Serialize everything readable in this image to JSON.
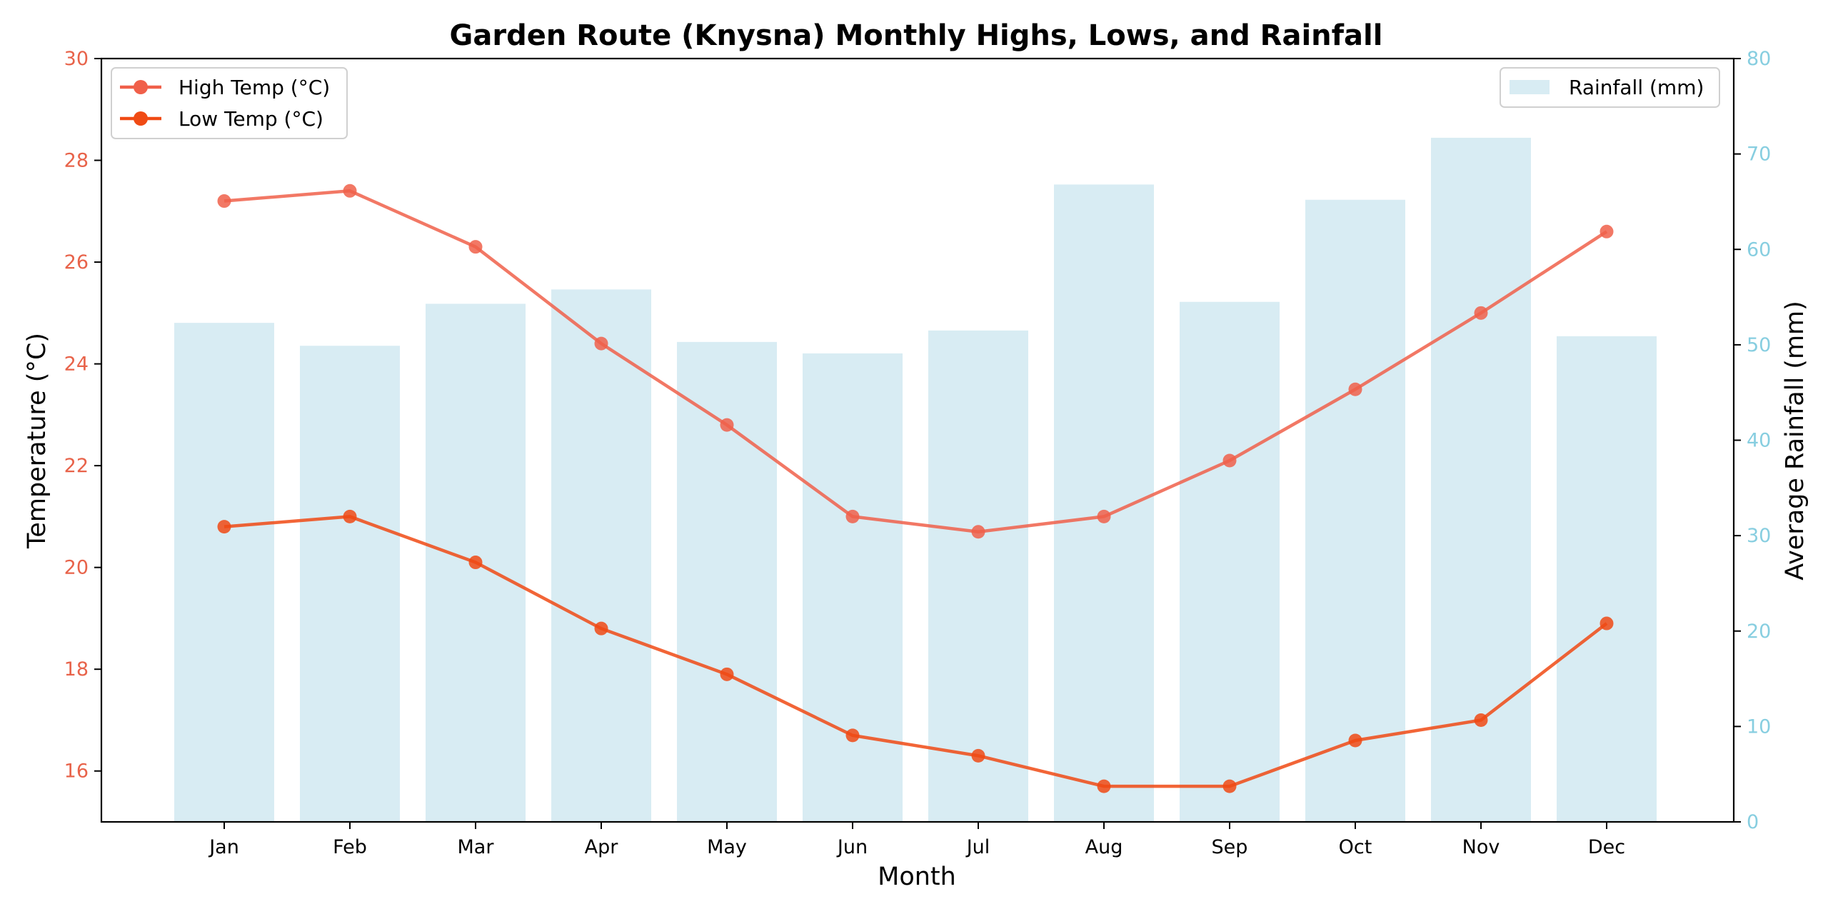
{
  "chart_data": {
    "type": "bar+line",
    "title": "Garden Route (Knysna) Monthly Highs, Lows, and Rainfall",
    "xlabel": "Month",
    "ylabel_left": "Temperature (°C)",
    "ylabel_right": "Average Rainfall (mm)",
    "categories": [
      "Jan",
      "Feb",
      "Mar",
      "Apr",
      "May",
      "Jun",
      "Jul",
      "Aug",
      "Sep",
      "Oct",
      "Nov",
      "Dec"
    ],
    "ylim_left": [
      15,
      30
    ],
    "yticks_left": [
      "16",
      "18",
      "20",
      "22",
      "24",
      "26",
      "28",
      "30"
    ],
    "ylim_right": [
      0,
      80
    ],
    "yticks_right": [
      "0",
      "10",
      "20",
      "30",
      "40",
      "50",
      "60",
      "70",
      "80"
    ],
    "bars": {
      "name": "Rainfall (mm)",
      "axis": "right",
      "color": "#add8e6",
      "values": [
        52.3,
        49.9,
        54.3,
        55.8,
        50.3,
        49.1,
        51.5,
        66.8,
        54.5,
        65.2,
        71.7,
        50.9
      ]
    },
    "series": [
      {
        "name": "High Temp (°C)",
        "axis": "left",
        "color": "#f0604a",
        "values": [
          27.2,
          27.4,
          26.3,
          24.4,
          22.8,
          21.0,
          20.7,
          21.0,
          22.1,
          23.5,
          25.0,
          26.6
        ]
      },
      {
        "name": "Low Temp (°C)",
        "axis": "left",
        "color": "#f04a14",
        "values": [
          20.8,
          21.0,
          20.1,
          18.8,
          17.9,
          16.7,
          16.3,
          15.7,
          15.7,
          16.6,
          17.0,
          18.9
        ]
      }
    ],
    "left_axis_color": "#e8634a",
    "right_axis_color": "#87cee0",
    "legend_lines_position": "upper-left",
    "legend_bars_position": "upper-right",
    "grid": false
  }
}
